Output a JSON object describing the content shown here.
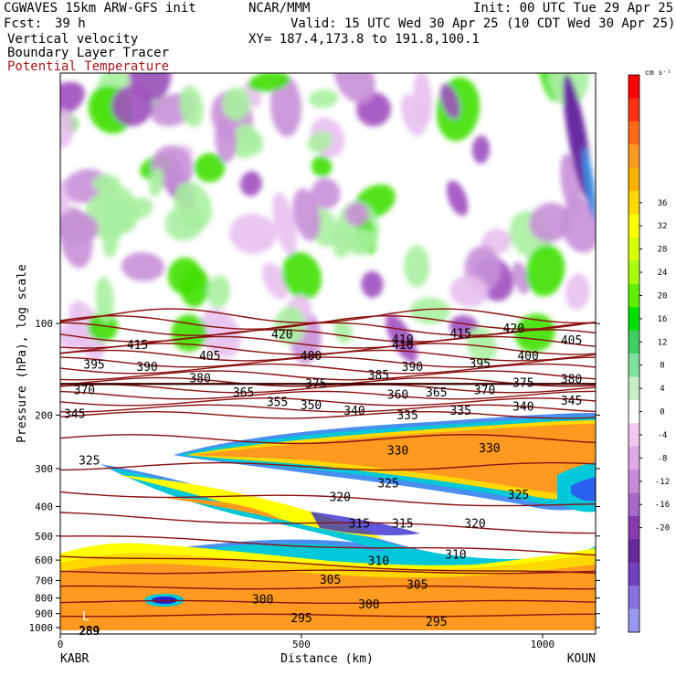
{
  "header": {
    "model": "CGWAVES 15km ARW-GFS init",
    "org": "NCAR/MMM",
    "init": "Init: 00 UTC Tue 29 Apr 25",
    "fcst_label": "Fcst:",
    "fcst_value": "39 h",
    "valid": "Valid: 15 UTC Wed 30 Apr 25 (10 CDT Wed 30 Apr 25)",
    "field1": "Vertical velocity",
    "xy": "XY= 187.4,173.8 to 191.8,100.1",
    "field2": "Boundary Layer Tracer",
    "field3": "Potential Temperature"
  },
  "chart_data": {
    "type": "heatmap",
    "title": "Vertical velocity / Boundary Layer Tracer / Potential Temperature cross-section",
    "xlabel": "Distance (km)",
    "ylabel": "Pressure (hPa), log scale",
    "xlim": [
      0,
      1110
    ],
    "ylim": [
      1050,
      15
    ],
    "y_scale": "log",
    "x_ticks": [
      0,
      500,
      1000
    ],
    "y_ticks": [
      100,
      200,
      300,
      400,
      500,
      600,
      700,
      800,
      900,
      1000
    ],
    "endpoints": {
      "left": "KABR",
      "right": "KOUN"
    },
    "colorbar": {
      "unit": "cm s⁻¹",
      "tick_labels": [
        36,
        32,
        28,
        24,
        20,
        16,
        12,
        8,
        4,
        0,
        -4,
        -8,
        -12,
        -16,
        -20
      ],
      "colors": [
        "#ff0000",
        "#ff3010",
        "#ff6a18",
        "#ff9a20",
        "#ffb000",
        "#ffd800",
        "#ffff00",
        "#d8ff00",
        "#a8ff10",
        "#5cf000",
        "#00e000",
        "#40d060",
        "#80e0a0",
        "#c8f0c8",
        "#ffffff",
        "#f0c8f0",
        "#e0a8e8",
        "#c88ad8",
        "#a868c8",
        "#8838b0",
        "#6828a0",
        "#7040c0",
        "#8870e0",
        "#9898f0"
      ]
    },
    "theta_contours": [
      {
        "value": 295,
        "label": "295"
      },
      {
        "value": 300,
        "label": "300"
      },
      {
        "value": 305,
        "label": "305"
      },
      {
        "value": 310,
        "label": "310"
      },
      {
        "value": 315,
        "label": "315"
      },
      {
        "value": 320,
        "label": "320"
      },
      {
        "value": 325,
        "label": "325"
      },
      {
        "value": 330,
        "label": "330"
      },
      {
        "value": 335,
        "label": "335"
      },
      {
        "value": 340,
        "label": "340"
      },
      {
        "value": 345,
        "label": "345"
      },
      {
        "value": 350,
        "label": "350"
      },
      {
        "value": 355,
        "label": "355"
      },
      {
        "value": 360,
        "label": "360"
      },
      {
        "value": 365,
        "label": "365"
      },
      {
        "value": 370,
        "label": "370"
      },
      {
        "value": 375,
        "label": "375"
      },
      {
        "value": 380,
        "label": "380"
      },
      {
        "value": 385,
        "label": "385"
      },
      {
        "value": 390,
        "label": "390"
      },
      {
        "value": 395,
        "label": "395"
      },
      {
        "value": 400,
        "label": "400"
      },
      {
        "value": 405,
        "label": "405"
      },
      {
        "value": 410,
        "label": "410"
      },
      {
        "value": 415,
        "label": "415"
      },
      {
        "value": 420,
        "label": "420"
      }
    ],
    "contour_labels_shown": [
      {
        "label": "415",
        "x": 160,
        "p": 118
      },
      {
        "label": "420",
        "x": 460,
        "p": 109
      },
      {
        "label": "410",
        "x": 710,
        "p": 113
      },
      {
        "label": "415",
        "x": 830,
        "p": 108
      },
      {
        "label": "420",
        "x": 940,
        "p": 104
      },
      {
        "label": "405",
        "x": 1060,
        "p": 114
      },
      {
        "label": "395",
        "x": 70,
        "p": 137
      },
      {
        "label": "390",
        "x": 180,
        "p": 139
      },
      {
        "label": "405",
        "x": 310,
        "p": 128
      },
      {
        "label": "400",
        "x": 520,
        "p": 128
      },
      {
        "label": "410",
        "x": 710,
        "p": 118
      },
      {
        "label": "390",
        "x": 730,
        "p": 139
      },
      {
        "label": "395",
        "x": 870,
        "p": 136
      },
      {
        "label": "400",
        "x": 970,
        "p": 128
      },
      {
        "label": "380",
        "x": 290,
        "p": 152
      },
      {
        "label": "385",
        "x": 660,
        "p": 148
      },
      {
        "label": "375",
        "x": 530,
        "p": 158
      },
      {
        "label": "375",
        "x": 960,
        "p": 157
      },
      {
        "label": "380",
        "x": 1060,
        "p": 153
      },
      {
        "label": "370",
        "x": 50,
        "p": 166
      },
      {
        "label": "365",
        "x": 380,
        "p": 169
      },
      {
        "label": "360",
        "x": 700,
        "p": 172
      },
      {
        "label": "365",
        "x": 780,
        "p": 169
      },
      {
        "label": "370",
        "x": 880,
        "p": 166
      },
      {
        "label": "355",
        "x": 450,
        "p": 182
      },
      {
        "label": "350",
        "x": 520,
        "p": 186
      },
      {
        "label": "340",
        "x": 610,
        "p": 194
      },
      {
        "label": "345",
        "x": 30,
        "p": 199
      },
      {
        "label": "335",
        "x": 720,
        "p": 201
      },
      {
        "label": "335",
        "x": 830,
        "p": 194
      },
      {
        "label": "340",
        "x": 960,
        "p": 188
      },
      {
        "label": "345",
        "x": 1060,
        "p": 180
      },
      {
        "label": "330",
        "x": 700,
        "p": 262
      },
      {
        "label": "330",
        "x": 890,
        "p": 258
      },
      {
        "label": "325",
        "x": 60,
        "p": 283
      },
      {
        "label": "325",
        "x": 680,
        "p": 336
      },
      {
        "label": "325",
        "x": 950,
        "p": 367
      },
      {
        "label": "320",
        "x": 580,
        "p": 373
      },
      {
        "label": "320",
        "x": 860,
        "p": 456
      },
      {
        "label": "315",
        "x": 620,
        "p": 456
      },
      {
        "label": "315",
        "x": 710,
        "p": 456
      },
      {
        "label": "310",
        "x": 660,
        "p": 605
      },
      {
        "label": "310",
        "x": 820,
        "p": 578
      },
      {
        "label": "305",
        "x": 560,
        "p": 697
      },
      {
        "label": "305",
        "x": 740,
        "p": 724
      },
      {
        "label": "300",
        "x": 420,
        "p": 810
      },
      {
        "label": "300",
        "x": 640,
        "p": 842
      },
      {
        "label": "295",
        "x": 500,
        "p": 935
      },
      {
        "label": "295",
        "x": 780,
        "p": 960
      },
      {
        "label": "289",
        "x": 60,
        "p": 1030
      }
    ],
    "annotations": [
      "L",
      "289"
    ]
  }
}
